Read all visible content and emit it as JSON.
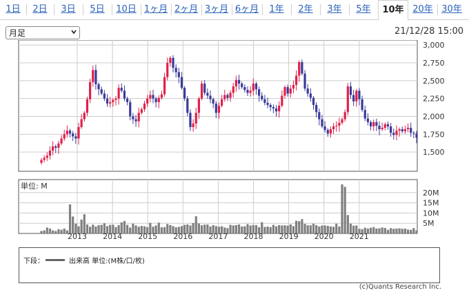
{
  "tabs": [
    {
      "label": "1日",
      "active": false
    },
    {
      "label": "2日",
      "active": false
    },
    {
      "label": "3日",
      "active": false
    },
    {
      "label": "5日",
      "active": false
    },
    {
      "label": "10日",
      "active": false
    },
    {
      "label": "1ヶ月",
      "active": false
    },
    {
      "label": "2ヶ月",
      "active": false
    },
    {
      "label": "3ヶ月",
      "active": false
    },
    {
      "label": "6ヶ月",
      "active": false
    },
    {
      "label": "1年",
      "active": false
    },
    {
      "label": "2年",
      "active": false
    },
    {
      "label": "3年",
      "active": false
    },
    {
      "label": "5年",
      "active": false
    },
    {
      "label": "10年",
      "active": true
    },
    {
      "label": "20年",
      "active": false
    },
    {
      "label": "30年",
      "active": false
    }
  ],
  "period_select": {
    "value": "月足"
  },
  "datetime": "21/12/28 15:00",
  "legend": {
    "lower_label": "下段：",
    "series_label": "出来高 単位:(M株/口/枚)"
  },
  "copyright": "(c)Quants Research Inc.",
  "colors": {
    "up": "#e0204a",
    "down": "#3a3a9a",
    "volume": "#808080",
    "grid": "#cccccc",
    "tab_link": "#2a61b8"
  },
  "chart_data": [
    {
      "type": "candlestick",
      "title": "",
      "ylim": [
        1250,
        3050
      ],
      "yticks": [
        1500,
        1750,
        2000,
        2250,
        2500,
        2750,
        3000
      ],
      "ytick_labels": [
        "1,500",
        "1,750",
        "2,000",
        "2,250",
        "2,500",
        "2,750",
        "3,000"
      ],
      "x_labels": [
        "2013",
        "2014",
        "2015",
        "2016",
        "2017",
        "2018",
        "2019",
        "2020",
        "2021"
      ],
      "close": [
        1390,
        1420,
        1450,
        1520,
        1580,
        1560,
        1620,
        1690,
        1750,
        1800,
        1760,
        1720,
        1690,
        1850,
        1960,
        2050,
        2240,
        2480,
        2650,
        2450,
        2380,
        2320,
        2250,
        2180,
        2200,
        2230,
        2250,
        2400,
        2360,
        2250,
        2200,
        2000,
        1960,
        1930,
        2050,
        2100,
        2180,
        2250,
        2300,
        2250,
        2200,
        2260,
        2310,
        2550,
        2750,
        2820,
        2680,
        2620,
        2550,
        2400,
        2250,
        2050,
        1850,
        1900,
        2050,
        2250,
        2460,
        2330,
        2290,
        2240,
        2180,
        2050,
        2150,
        2240,
        2300,
        2260,
        2330,
        2420,
        2510,
        2460,
        2410,
        2370,
        2330,
        2360,
        2460,
        2380,
        2290,
        2240,
        2190,
        2160,
        2130,
        2110,
        2070,
        2150,
        2290,
        2410,
        2320,
        2390,
        2440,
        2570,
        2760,
        2600,
        2390,
        2320,
        2260,
        2160,
        2060,
        1960,
        1860,
        1810,
        1760,
        1820,
        1860,
        1870,
        1910,
        1960,
        2060,
        2420,
        2300,
        2210,
        2360,
        2240,
        2090,
        1970,
        1920,
        1860,
        1920,
        1870,
        1820,
        1840,
        1890,
        1860,
        1770,
        1740,
        1800,
        1820,
        1790,
        1820,
        1840,
        1770,
        1760,
        1700
      ],
      "volume": [
        1.2,
        1.5,
        2.9,
        2.4,
        1.5,
        1.2,
        2.1,
        1.8,
        2.4,
        1.5,
        14.2,
        8.3,
        4.8,
        3.5,
        6.8,
        9.4,
        4.4,
        3.3,
        4.3,
        3.4,
        4.1,
        4.2,
        5.0,
        3.6,
        4.2,
        4.3,
        3.1,
        4.1,
        5.4,
        6.1,
        4.2,
        2.9,
        4.8,
        3.9,
        3.3,
        3.7,
        3.5,
        3.1,
        5.2,
        3.3,
        3.9,
        5.3,
        3.0,
        3.1,
        4.6,
        4.1,
        3.6,
        3.0,
        3.2,
        3.6,
        4.2,
        4.4,
        3.9,
        5.1,
        8.4,
        4.9,
        4.0,
        4.3,
        4.4,
        3.4,
        4.1,
        3.6,
        3.3,
        3.5,
        2.9,
        2.6,
        4.2,
        3.9,
        4.1,
        4.4,
        3.4,
        3.5,
        4.6,
        3.9,
        4.1,
        4.1,
        3.1,
        5.5,
        3.2,
        3.4,
        3.1,
        4.2,
        3.5,
        4.1,
        3.9,
        4.0,
        3.8,
        4.4,
        3.6,
        6.2,
        6.0,
        7.0,
        4.7,
        4.0,
        4.0,
        4.8,
        4.1,
        3.4,
        3.9,
        3.9,
        3.7,
        3.4,
        3.3,
        4.8,
        3.4,
        24.0,
        22.8,
        9.0,
        4.8,
        3.8,
        3.9,
        2.3,
        2.1,
        2.8,
        2.4,
        2.8,
        3.1,
        2.4,
        2.5,
        2.9,
        2.7,
        1.8,
        2.6,
        2.3,
        2.4,
        2.5,
        2.3,
        2.4,
        1.9,
        1.8,
        2.6,
        1.5
      ],
      "volume_unit": "単位: M",
      "volume_yticks": [
        5,
        10,
        15,
        20
      ],
      "volume_ytick_labels": [
        "5M",
        "10M",
        "15M",
        "20M"
      ],
      "volume_ylim": [
        0,
        25
      ]
    }
  ]
}
